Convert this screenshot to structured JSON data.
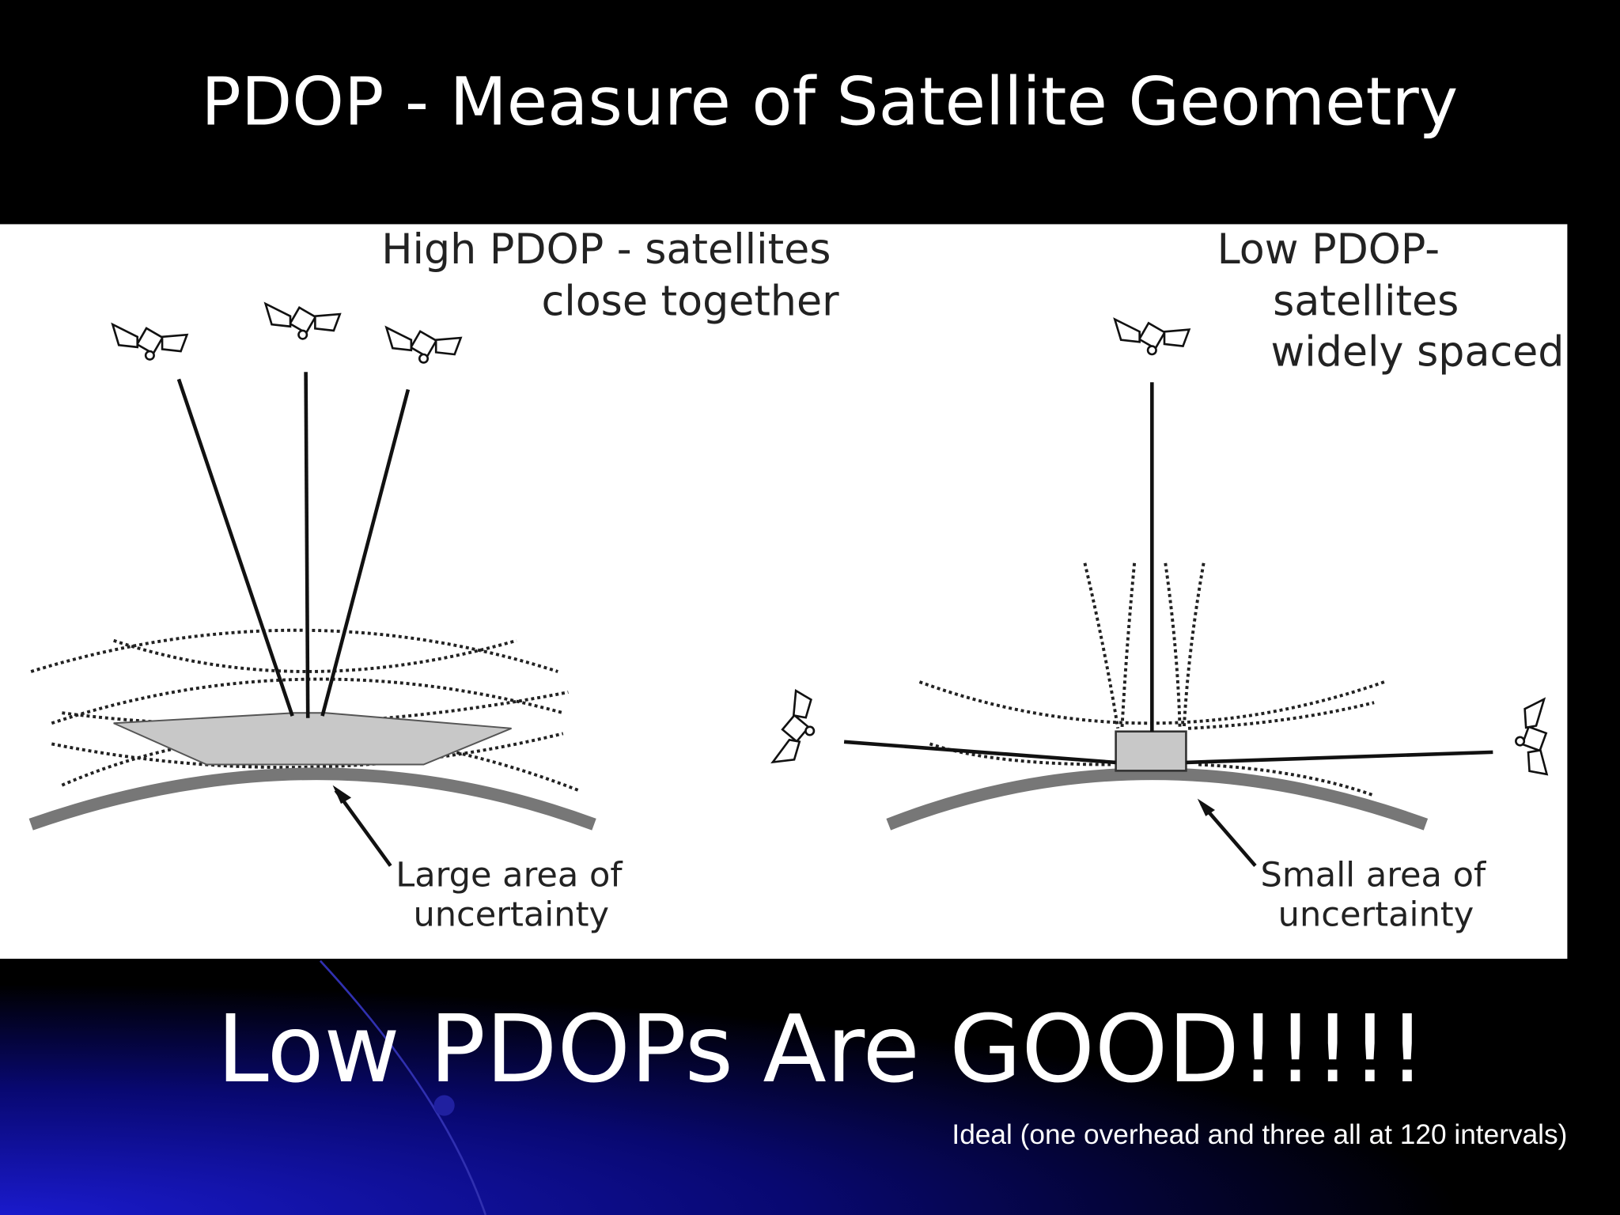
{
  "title": "PDOP - Measure of Satellite Geometry",
  "diagram": {
    "left": {
      "heading": [
        "High PDOP - satellites",
        "close together"
      ],
      "callout": [
        "Large area of",
        "uncertainty"
      ]
    },
    "right": {
      "heading": [
        "Low PDOP-",
        "satellites",
        "widely spaced"
      ],
      "callout": [
        "Small area of",
        "uncertainty"
      ]
    }
  },
  "footer": {
    "headline": "Low PDOPs Are GOOD!!!!!",
    "note": "Ideal (one overhead and three all at 120  intervals)"
  }
}
